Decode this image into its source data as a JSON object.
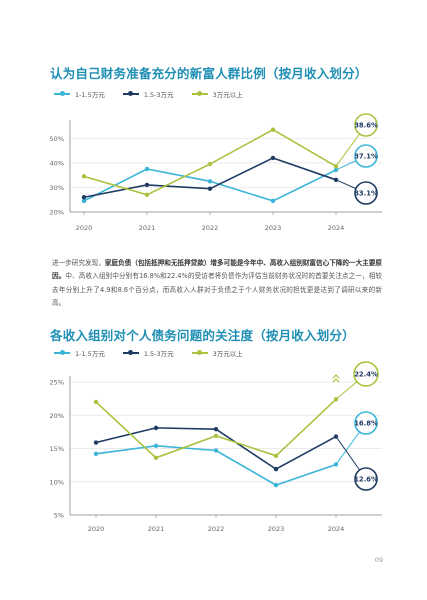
{
  "colors": {
    "s1": "#3ab5d8",
    "s2": "#1f3b63",
    "s3": "#a9c33f",
    "title": "#1f8fb4",
    "axis": "#666666",
    "grid": "#e3e3e3"
  },
  "page": {
    "paragraph_normal_1": "进一步研究发现，",
    "paragraph_bold": "家庭负债（包括抵押和无抵押贷款）增多可能是今年中、高收入组别财富信心下降的一大主要原因。",
    "paragraph_normal_2": "中、高收入组别中分别有16.8%和22.4%的受访者将负债作为评估当前财务状况时的首要关注点之一，相较去年分别上升了4.9和8.6个百分点，而高收入人群对于负债之于个人财务状况的担忧更是达到了调研以来的新高。",
    "page_number": "09"
  },
  "chart_data": [
    {
      "type": "line",
      "title": "认为自己财务准备充分的新富人群比例（按月收入划分）",
      "categories": [
        "2020",
        "2021",
        "2022",
        "2023",
        "2024"
      ],
      "series": [
        {
          "name": "1-1.5万元",
          "values": [
            24.5,
            37.5,
            32.5,
            24.5,
            37.1
          ]
        },
        {
          "name": "1.5-3万元",
          "values": [
            26.0,
            31.0,
            29.5,
            42.0,
            33.1
          ]
        },
        {
          "name": "3万元以上",
          "values": [
            34.5,
            27.0,
            39.5,
            53.5,
            38.6
          ]
        }
      ],
      "yticks": [
        "20%",
        "30%",
        "40%",
        "50%"
      ],
      "ylim": [
        20,
        55
      ],
      "callouts": [
        "38.6%",
        "37.1%",
        "33.1%"
      ],
      "grid": true,
      "legend": "top-left"
    },
    {
      "type": "line",
      "title": "各收入组别对个人债务问题的关注度（按月收入划分）",
      "categories": [
        "2020",
        "2021",
        "2022",
        "2023",
        "2024"
      ],
      "series": [
        {
          "name": "1-1.5万元",
          "values": [
            14.2,
            15.4,
            14.7,
            9.5,
            12.6
          ]
        },
        {
          "name": "1.5-3万元",
          "values": [
            15.9,
            18.1,
            17.9,
            11.9,
            16.8
          ]
        },
        {
          "name": "3万元以上",
          "values": [
            22.0,
            13.6,
            16.9,
            13.9,
            22.4
          ]
        }
      ],
      "yticks": [
        "5%",
        "10%",
        "15%",
        "20%",
        "25%"
      ],
      "ylim": [
        5,
        25
      ],
      "callouts": [
        "22.4%",
        "16.8%",
        "12.6%"
      ],
      "grid": true,
      "legend": "top-left"
    }
  ]
}
